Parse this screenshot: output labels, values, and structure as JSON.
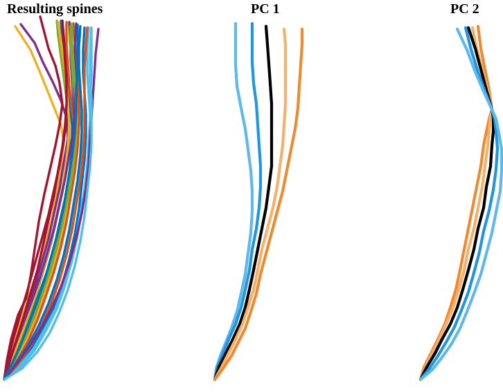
{
  "panels": [
    {
      "title": "Resulting spines",
      "curves": [
        {
          "color": "#EDB120"
        },
        {
          "color": "#7E2F8E"
        },
        {
          "color": "#A2142F"
        },
        {
          "color": "#0072BD"
        },
        {
          "color": "#D95319"
        },
        {
          "color": "#77AC30"
        },
        {
          "color": "#4DBEEE"
        },
        {
          "color": "#EDB120"
        },
        {
          "color": "#7E2F8E"
        },
        {
          "color": "#A2142F"
        },
        {
          "color": "#0072BD"
        },
        {
          "color": "#D95319"
        },
        {
          "color": "#77AC30"
        },
        {
          "color": "#4DBEEE"
        },
        {
          "color": "#EDB120"
        },
        {
          "color": "#7E2F8E"
        },
        {
          "color": "#A2142F"
        },
        {
          "color": "#0072BD"
        },
        {
          "color": "#77AC30"
        },
        {
          "color": "#4DBEEE"
        },
        {
          "color": "#D95319"
        },
        {
          "color": "#7E2F8E"
        },
        {
          "color": "#0072BD"
        },
        {
          "color": "#4DBEEE"
        }
      ]
    },
    {
      "title": "PC 1",
      "curves": [
        {
          "color": "#5EB8EC"
        },
        {
          "color": "#1E96E0"
        },
        {
          "color": "#000000"
        },
        {
          "color": "#F5B06A"
        },
        {
          "color": "#F08A30"
        }
      ]
    },
    {
      "title": "PC 2",
      "curves": [
        {
          "color": "#F08A30"
        },
        {
          "color": "#F5B06A"
        },
        {
          "color": "#000000"
        },
        {
          "color": "#1E96E0"
        },
        {
          "color": "#5EB8EC"
        }
      ]
    }
  ]
}
